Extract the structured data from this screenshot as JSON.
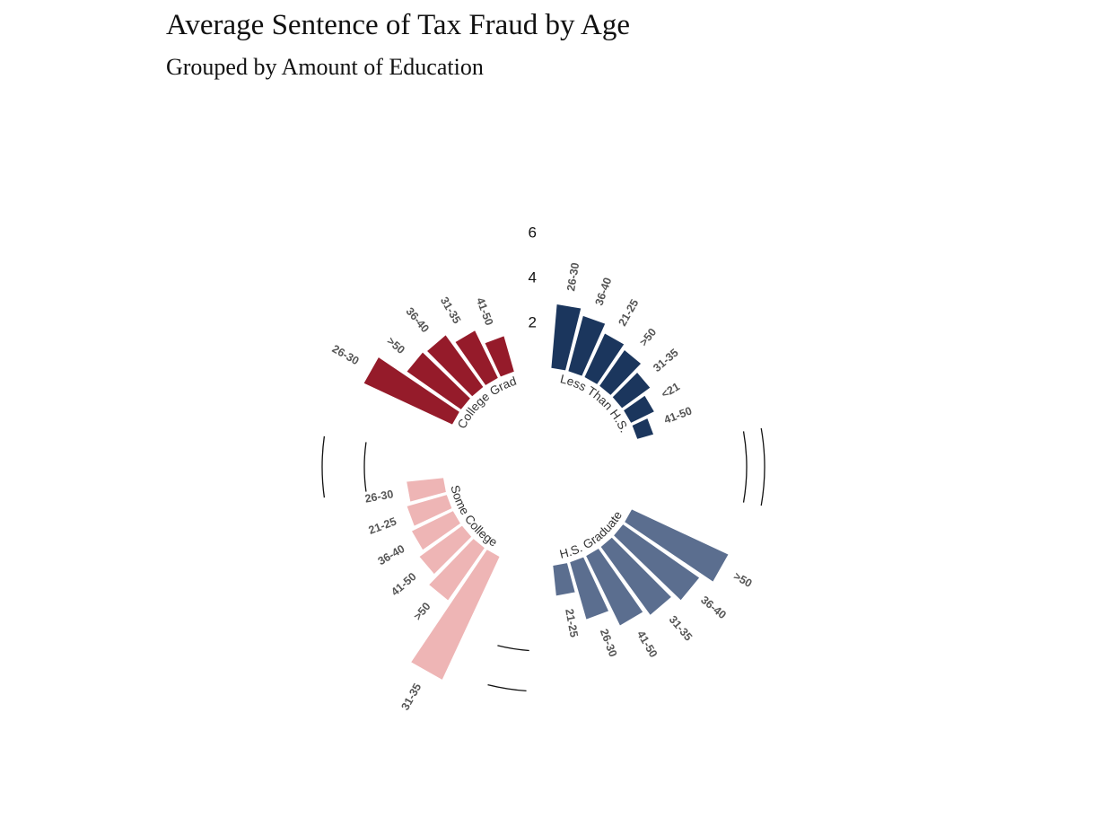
{
  "title": "Average Sentence of Tax Fraud by Age",
  "subtitle": "Grouped by Amount of Education",
  "chart_data": {
    "type": "bar",
    "coordinate_system": "polar",
    "title": "Average Sentence of Tax Fraud by Age",
    "subtitle": "Grouped by Amount of Education",
    "radial_scale_labels": [
      "2",
      "4",
      "6"
    ],
    "legend": "none",
    "groups": [
      {
        "name": "Less Than H.S.",
        "color": "#1b365d",
        "categories": [
          "26-30",
          "36-40",
          "21-25",
          ">50",
          "31-35",
          "<21",
          "41-50"
        ],
        "values": [
          2.9,
          2.6,
          2.2,
          2.0,
          1.6,
          1.2,
          0.8
        ]
      },
      {
        "name": "H.S. Graduate",
        "color": "#5b6e8f",
        "categories": [
          ">50",
          "36-40",
          "31-35",
          "41-50",
          "26-30",
          "21-25"
        ],
        "values": [
          4.8,
          4.2,
          3.8,
          3.5,
          2.7,
          1.4
        ]
      },
      {
        "name": "Some College",
        "color": "#eeb5b5",
        "categories": [
          "31-35",
          ">50",
          "41-50",
          "36-40",
          "21-25",
          "26-30"
        ],
        "values": [
          6.1,
          2.9,
          2.4,
          2.1,
          1.9,
          1.7
        ]
      },
      {
        "name": "College Grad",
        "color": "#951b2a",
        "categories": [
          "26-30",
          ">50",
          "36-40",
          "31-35",
          "41-50"
        ],
        "values": [
          4.4,
          3.0,
          2.9,
          2.4,
          1.7
        ]
      }
    ]
  }
}
